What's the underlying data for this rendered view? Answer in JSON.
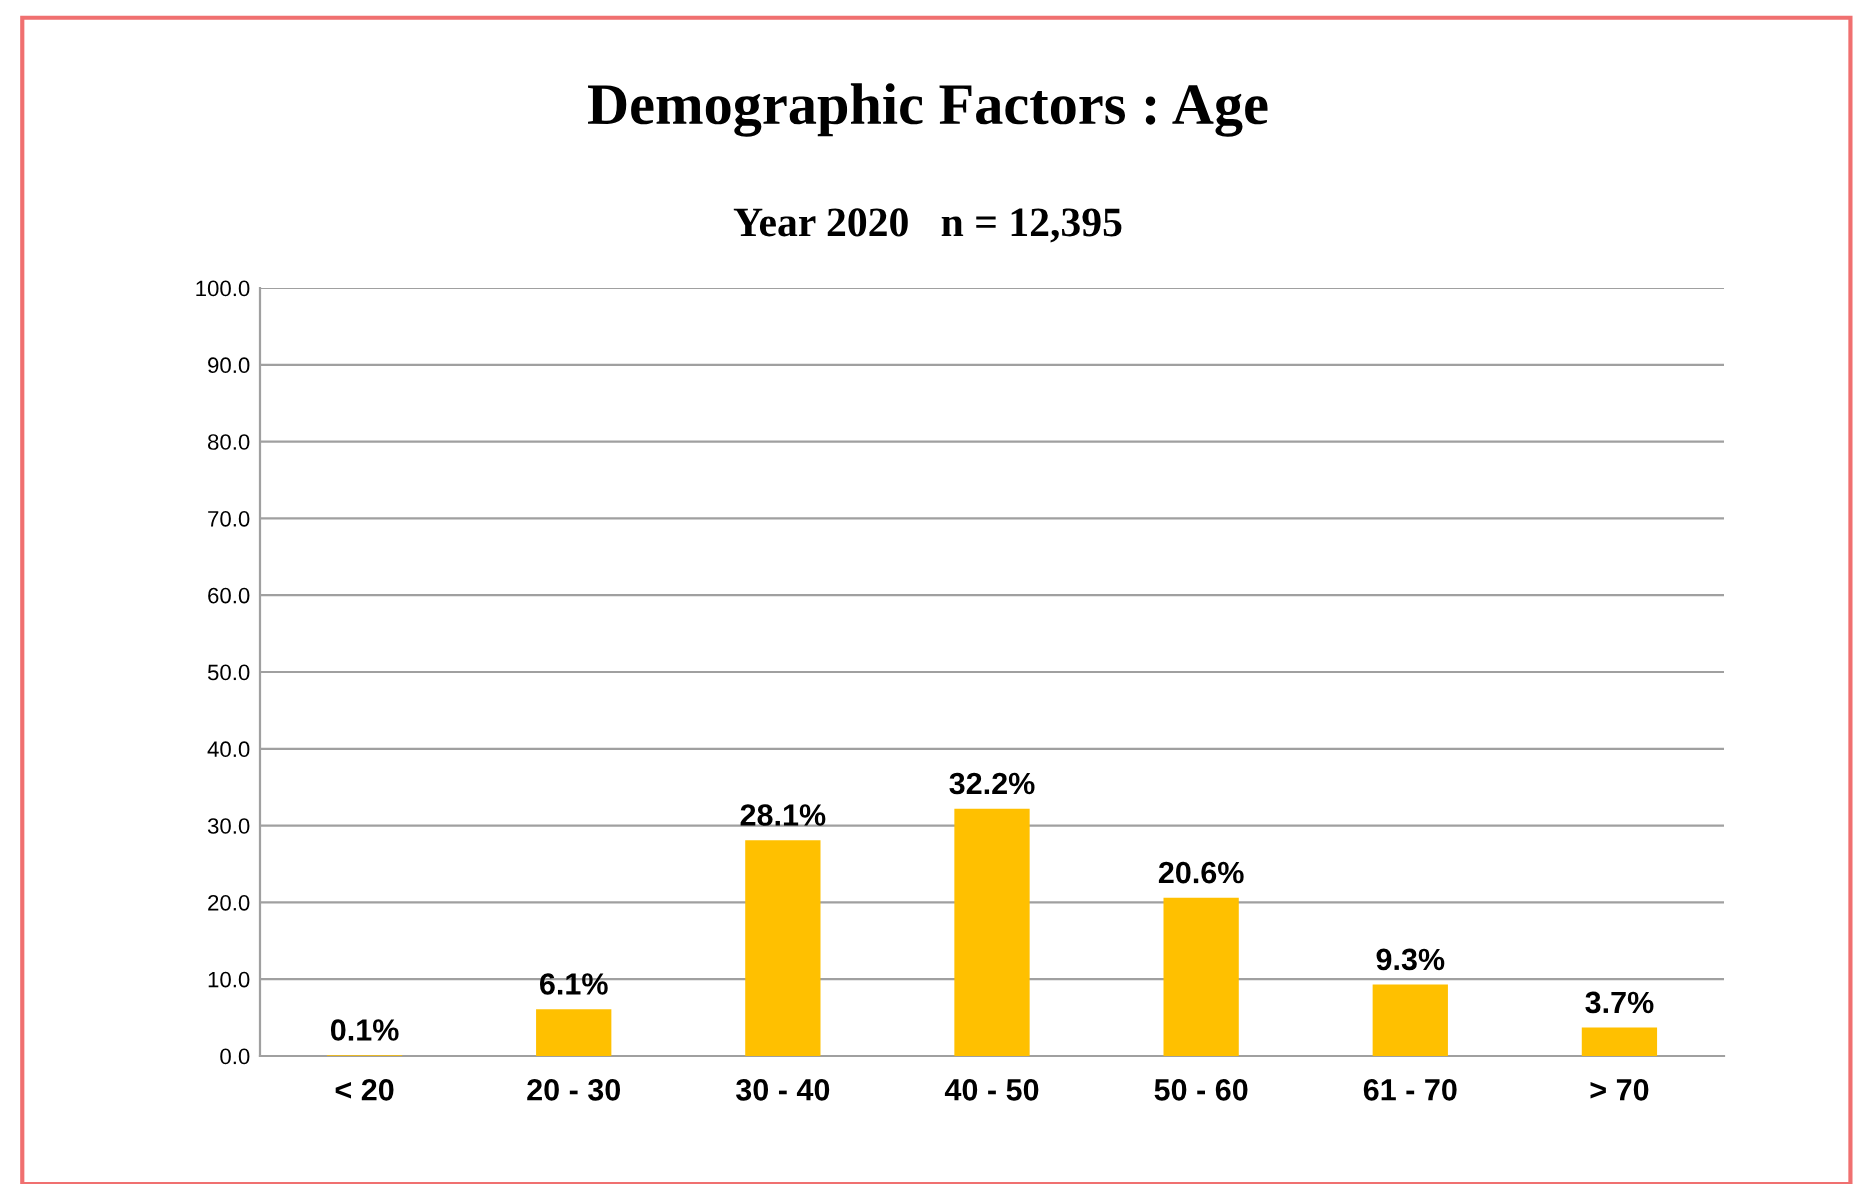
{
  "chart_data": {
    "type": "bar",
    "title": "Demographic Factors : Age",
    "subtitle": "Year 2020   n = 12,395",
    "categories": [
      "< 20",
      "20 - 30",
      "30 - 40",
      "40 - 50",
      "50 - 60",
      "61 - 70",
      "> 70"
    ],
    "values": [
      0.1,
      6.1,
      28.1,
      32.2,
      20.6,
      9.3,
      3.7
    ],
    "value_labels": [
      "0.1%",
      "6.1%",
      "28.1%",
      "32.2%",
      "20.6%",
      "9.3%",
      "3.7%"
    ],
    "color": "#ffc000",
    "ylim": [
      0,
      100
    ],
    "yticks": [
      {
        "value": 0,
        "label": "0.0"
      },
      {
        "value": 10,
        "label": "10.0"
      },
      {
        "value": 20,
        "label": "20.0"
      },
      {
        "value": 30,
        "label": "30.0"
      },
      {
        "value": 40,
        "label": "40.0"
      },
      {
        "value": 50,
        "label": "50.0"
      },
      {
        "value": 60,
        "label": "60.0"
      },
      {
        "value": 70,
        "label": "70.0"
      },
      {
        "value": 80,
        "label": "80.0"
      },
      {
        "value": 90,
        "label": "90.0"
      },
      {
        "value": 100,
        "label": "100.0"
      }
    ],
    "grid": "y",
    "legend": false
  }
}
